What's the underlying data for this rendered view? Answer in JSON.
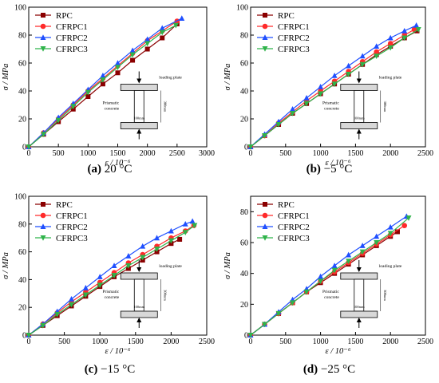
{
  "panels": [
    {
      "caption_letter": "(a)",
      "caption_text": "20 °C",
      "chart_data": {
        "type": "line",
        "xlabel": "ε / 10⁻⁶",
        "ylabel": "σ / MPa",
        "xlim": [
          0,
          3000
        ],
        "ylim": [
          0,
          100
        ],
        "xticks": [
          0,
          500,
          1000,
          1500,
          2000,
          2500,
          3000
        ],
        "yticks": [
          0,
          20,
          40,
          60,
          80,
          100
        ],
        "legend_position": "top-left",
        "grid": false,
        "series": [
          {
            "name": "RPC",
            "color": "#8b0000",
            "marker": "square",
            "x": [
              0,
              250,
              500,
              750,
              1000,
              1250,
              1500,
              1750,
              2000,
              2250,
              2500
            ],
            "y": [
              0,
              9,
              18,
              27,
              36,
              45,
              53,
              62,
              70,
              78,
              88
            ]
          },
          {
            "name": "CFRPC1",
            "color": "#ff2a2a",
            "marker": "circle",
            "x": [
              0,
              250,
              500,
              750,
              1000,
              1250,
              1500,
              1750,
              2000,
              2250,
              2500
            ],
            "y": [
              0,
              10,
              20,
              30,
              40,
              49,
              58,
              67,
              76,
              83,
              90
            ]
          },
          {
            "name": "CFRPC2",
            "color": "#1f4fff",
            "marker": "triangle-up",
            "x": [
              0,
              250,
              500,
              750,
              1000,
              1250,
              1500,
              1750,
              2000,
              2250,
              2580
            ],
            "y": [
              0,
              10,
              21,
              31,
              41,
              51,
              60,
              69,
              77,
              85,
              92
            ]
          },
          {
            "name": "CFRPC3",
            "color": "#2fb34a",
            "marker": "triangle-down",
            "x": [
              0,
              250,
              500,
              750,
              1000,
              1250,
              1500,
              1750,
              2000,
              2250,
              2480
            ],
            "y": [
              0,
              9,
              19,
              29,
              39,
              48,
              57,
              66,
              74,
              82,
              87
            ]
          }
        ]
      }
    },
    {
      "caption_letter": "(b)",
      "caption_text": "−5 °C",
      "chart_data": {
        "type": "line",
        "xlabel": "ε / 10⁻⁶",
        "ylabel": "σ / MPa",
        "xlim": [
          0,
          2500
        ],
        "ylim": [
          0,
          100
        ],
        "xticks": [
          0,
          500,
          1000,
          1500,
          2000,
          2500
        ],
        "yticks": [
          0,
          20,
          40,
          60,
          80,
          100
        ],
        "legend_position": "top-left",
        "grid": false,
        "series": [
          {
            "name": "RPC",
            "color": "#8b0000",
            "marker": "square",
            "x": [
              0,
              200,
              400,
              600,
              800,
              1000,
              1200,
              1400,
              1600,
              1800,
              2000,
              2200,
              2380
            ],
            "y": [
              0,
              8,
              16,
              24,
              31,
              38,
              45,
              52,
              59,
              66,
              72,
              78,
              83
            ]
          },
          {
            "name": "CFRPC1",
            "color": "#ff2a2a",
            "marker": "circle",
            "x": [
              0,
              200,
              400,
              600,
              800,
              1000,
              1200,
              1400,
              1600,
              1800,
              2000,
              2200,
              2340
            ],
            "y": [
              0,
              8,
              17,
              25,
              33,
              40,
              47,
              54,
              61,
              68,
              74,
              80,
              84
            ]
          },
          {
            "name": "CFRPC2",
            "color": "#1f4fff",
            "marker": "triangle-up",
            "x": [
              0,
              200,
              400,
              600,
              800,
              1000,
              1200,
              1400,
              1600,
              1800,
              2000,
              2200,
              2370
            ],
            "y": [
              0,
              9,
              18,
              27,
              35,
              43,
              51,
              58,
              65,
              72,
              78,
              83,
              87
            ]
          },
          {
            "name": "CFRPC3",
            "color": "#2fb34a",
            "marker": "triangle-down",
            "x": [
              0,
              200,
              400,
              600,
              800,
              1000,
              1200,
              1400,
              1600,
              1800,
              2000,
              2200,
              2400
            ],
            "y": [
              0,
              8,
              16,
              24,
              31,
              38,
              45,
              52,
              59,
              65,
              71,
              78,
              84
            ]
          }
        ]
      }
    },
    {
      "caption_letter": "(c)",
      "caption_text": "−15 °C",
      "chart_data": {
        "type": "line",
        "xlabel": "ε / 10⁻⁶",
        "ylabel": "σ / MPa",
        "xlim": [
          0,
          2500
        ],
        "ylim": [
          0,
          100
        ],
        "xticks": [
          0,
          500,
          1000,
          1500,
          2000,
          2500
        ],
        "yticks": [
          0,
          20,
          40,
          60,
          80,
          100
        ],
        "legend_position": "top-left",
        "grid": false,
        "series": [
          {
            "name": "RPC",
            "color": "#8b0000",
            "marker": "square",
            "x": [
              0,
              200,
              400,
              600,
              800,
              1000,
              1200,
              1400,
              1600,
              1800,
              2000,
              2120
            ],
            "y": [
              0,
              7,
              14,
              21,
              28,
              35,
              42,
              48,
              54,
              60,
              66,
              69
            ]
          },
          {
            "name": "CFRPC1",
            "color": "#ff2a2a",
            "marker": "circle",
            "x": [
              0,
              200,
              400,
              600,
              800,
              1000,
              1200,
              1400,
              1600,
              1800,
              2000,
              2200,
              2320
            ],
            "y": [
              0,
              8,
              16,
              24,
              31,
              38,
              45,
              52,
              58,
              64,
              70,
              75,
              79
            ]
          },
          {
            "name": "CFRPC2",
            "color": "#1f4fff",
            "marker": "triangle-up",
            "x": [
              0,
              200,
              400,
              600,
              800,
              1000,
              1200,
              1400,
              1600,
              1800,
              2000,
              2200,
              2300
            ],
            "y": [
              0,
              8,
              17,
              26,
              34,
              42,
              50,
              57,
              64,
              70,
              75,
              80,
              82
            ]
          },
          {
            "name": "CFRPC3",
            "color": "#2fb34a",
            "marker": "triangle-down",
            "x": [
              0,
              200,
              400,
              600,
              800,
              1000,
              1200,
              1400,
              1600,
              1800,
              2000,
              2200,
              2330
            ],
            "y": [
              0,
              7,
              15,
              22,
              29,
              36,
              43,
              50,
              56,
              62,
              68,
              74,
              79
            ]
          }
        ]
      }
    },
    {
      "caption_letter": "(d)",
      "caption_text": "−25 °C",
      "chart_data": {
        "type": "line",
        "xlabel": "ε / 10⁻⁶",
        "ylabel": "σ / MPa",
        "xlim": [
          0,
          2500
        ],
        "ylim": [
          0,
          90
        ],
        "xticks": [
          0,
          500,
          1000,
          1500,
          2000,
          2500
        ],
        "yticks": [
          0,
          20,
          40,
          60,
          80
        ],
        "legend_position": "top-left",
        "grid": false,
        "series": [
          {
            "name": "RPC",
            "color": "#8b0000",
            "marker": "square",
            "x": [
              0,
              200,
              400,
              600,
              800,
              1000,
              1200,
              1400,
              1600,
              1800,
              2000,
              2100
            ],
            "y": [
              0,
              7,
              14,
              21,
              28,
              34,
              40,
              46,
              52,
              58,
              64,
              67
            ]
          },
          {
            "name": "CFRPC1",
            "color": "#ff2a2a",
            "marker": "circle",
            "x": [
              0,
              200,
              400,
              600,
              800,
              1000,
              1200,
              1400,
              1600,
              1800,
              2000,
              2200
            ],
            "y": [
              0,
              7,
              14,
              21,
              28,
              35,
              41,
              47,
              53,
              59,
              65,
              71
            ]
          },
          {
            "name": "CFRPC2",
            "color": "#1f4fff",
            "marker": "triangle-up",
            "x": [
              0,
              200,
              400,
              600,
              800,
              1000,
              1200,
              1400,
              1600,
              1800,
              2000,
              2230
            ],
            "y": [
              0,
              7,
              15,
              23,
              30,
              38,
              45,
              52,
              58,
              64,
              70,
              77
            ]
          },
          {
            "name": "CFRPC3",
            "color": "#2fb34a",
            "marker": "triangle-down",
            "x": [
              0,
              200,
              400,
              600,
              800,
              1000,
              1200,
              1400,
              1600,
              1800,
              2000,
              2260
            ],
            "y": [
              0,
              7,
              14,
              21,
              28,
              35,
              42,
              48,
              54,
              60,
              66,
              76
            ]
          }
        ]
      }
    }
  ],
  "inset": {
    "loading_plate_label": "loading plate",
    "prismatic_label_line1": "Prismatic",
    "prismatic_label_line2": "concrete",
    "width_label": "100mm",
    "height_label": "300mm"
  }
}
